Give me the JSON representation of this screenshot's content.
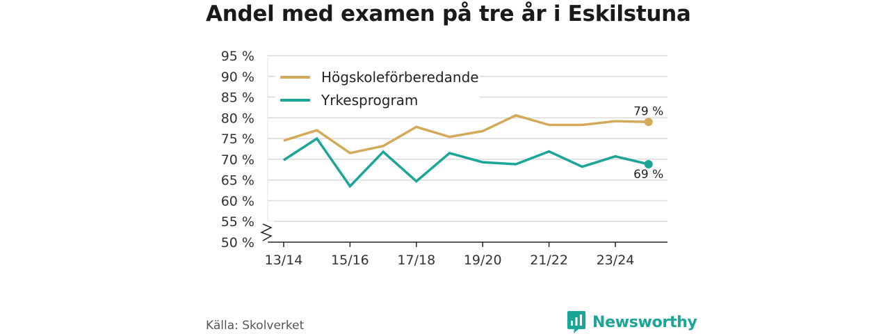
{
  "chart_data": {
    "type": "line",
    "title": "Andel med examen på tre år i Eskilstuna",
    "xlabel": "",
    "ylabel": "",
    "categories": [
      "13/14",
      "14/15",
      "15/16",
      "16/17",
      "17/18",
      "18/19",
      "19/20",
      "20/21",
      "21/22",
      "22/23",
      "23/24",
      "24/25"
    ],
    "x_tick_labels": [
      "13/14",
      "15/16",
      "17/18",
      "19/20",
      "21/22",
      "23/24"
    ],
    "y_ticks": [
      50,
      55,
      60,
      65,
      70,
      75,
      80,
      85,
      90,
      95
    ],
    "y_tick_labels": [
      "50 %",
      "55 %",
      "60 %",
      "65 %",
      "70 %",
      "75 %",
      "80 %",
      "85 %",
      "90 %",
      "95 %"
    ],
    "ylim": [
      50,
      95
    ],
    "axis_break": true,
    "grid": true,
    "legend_position": "top-left",
    "series": [
      {
        "name": "Högskoleförberedande",
        "color": "#d4aa5a",
        "values": [
          74.5,
          77,
          71.5,
          73.2,
          77.8,
          75.4,
          76.8,
          80.6,
          78.3,
          78.3,
          79.2,
          79
        ],
        "end_label": "79 %"
      },
      {
        "name": "Yrkesprogram",
        "color": "#1aa597",
        "values": [
          69.8,
          75,
          63.5,
          71.8,
          64.7,
          71.5,
          69.3,
          68.8,
          71.9,
          68.2,
          70.7,
          68.8
        ],
        "end_label": "69 %"
      }
    ]
  },
  "footer": {
    "source": "Källa: Skolverket",
    "brand": "Newsworthy",
    "brand_icon": "newsworthy-logo-icon"
  }
}
